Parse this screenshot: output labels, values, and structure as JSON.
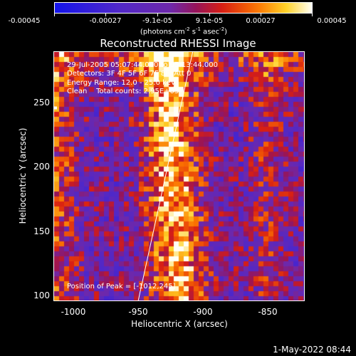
{
  "colorbar": {
    "labels": [
      "-0.00045",
      "-0.00027",
      "-9.1e-05",
      "9.1e-05",
      "0.00027",
      "0.00045"
    ],
    "units_prefix": "(photons cm",
    "units_exp1": "-2",
    "units_mid1": " s",
    "units_exp2": "-1",
    "units_mid2": " asec",
    "units_exp3": "-2",
    "units_suffix": ")"
  },
  "chart_data": {
    "type": "heatmap",
    "title": "Reconstructed RHESSI Image",
    "xlabel": "Heliocentric X (arcsec)",
    "ylabel": "Heliocentric Y (arcsec)",
    "x_ticks": [
      "-1000",
      "-950",
      "-900",
      "-850"
    ],
    "y_ticks": [
      "250",
      "200",
      "150",
      "100"
    ],
    "xlim": [
      -1010,
      -817
    ],
    "ylim": [
      97,
      288
    ],
    "color_range": [
      -0.00045,
      0.00045
    ],
    "limb_line": [
      [
        -945,
        97
      ],
      [
        -903,
        288
      ]
    ],
    "bright_ridge_x": -918,
    "peak": [
      -1012,
      245
    ]
  },
  "annotations": {
    "line1": "29-Jul-2005 05:07:44.000 to 05:13:44.000",
    "line2": "Detectors: 3F 4F 5F 6F 7F 8F, Att 0",
    "line3": "Energy Range: 12.0 - 25.0 keV",
    "line4": "Clean    Total counts: 2.95E+03",
    "peak": "Position of Peak = [-1012,245]"
  },
  "timestamp": "1-May-2022 08:44"
}
